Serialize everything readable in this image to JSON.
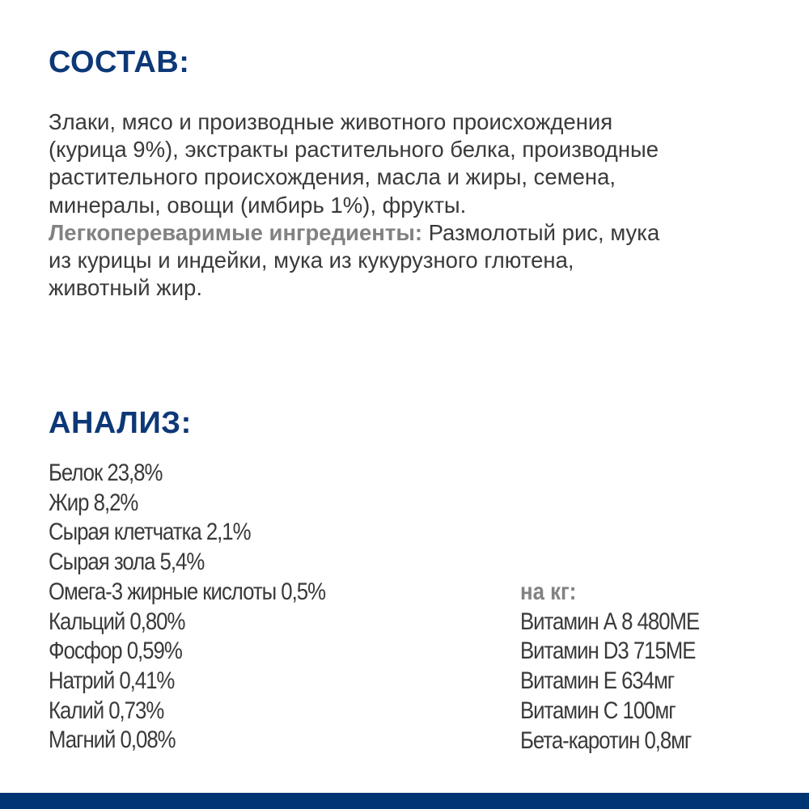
{
  "composition": {
    "title": "СОСТАВ:",
    "lines": [
      "Злаки, мясо и производные животного происхождения",
      "(курица 9%), экстракты растительного белка, производные",
      "растительного происхождения, масла и жиры, семена,",
      "минералы, овощи (имбирь 1%), фрукты."
    ],
    "easy_label": "Легкопереваримые ингредиенты:",
    "easy_lines": [
      " Размолотый рис, мука",
      "из курицы и индейки, мука из кукурузного глютена,",
      "животный жир."
    ]
  },
  "analysis": {
    "title": "АНАЛИЗ:",
    "items": [
      "Белок 23,8%",
      "Жир 8,2%",
      "Сырая клетчатка 2,1%",
      "Сырая зола 5,4%",
      "Омега-3 жирные кислоты 0,5%",
      "Кальций 0,80%",
      "Фосфор 0,59%",
      "Натрий 0,41%",
      "Калий 0,73%",
      "Магний 0,08%"
    ],
    "per_kg_label": "на кг:",
    "per_kg": [
      "Витамин А 8 480МЕ",
      "Витамин D3 715МЕ",
      "Витамин Е 634мг",
      "Витамин С 100мг",
      "Бета-каротин 0,8мг"
    ]
  },
  "colors": {
    "heading": "#0d3877",
    "bar": "#003574",
    "label": "#828282",
    "text": "#3a3a3a"
  }
}
